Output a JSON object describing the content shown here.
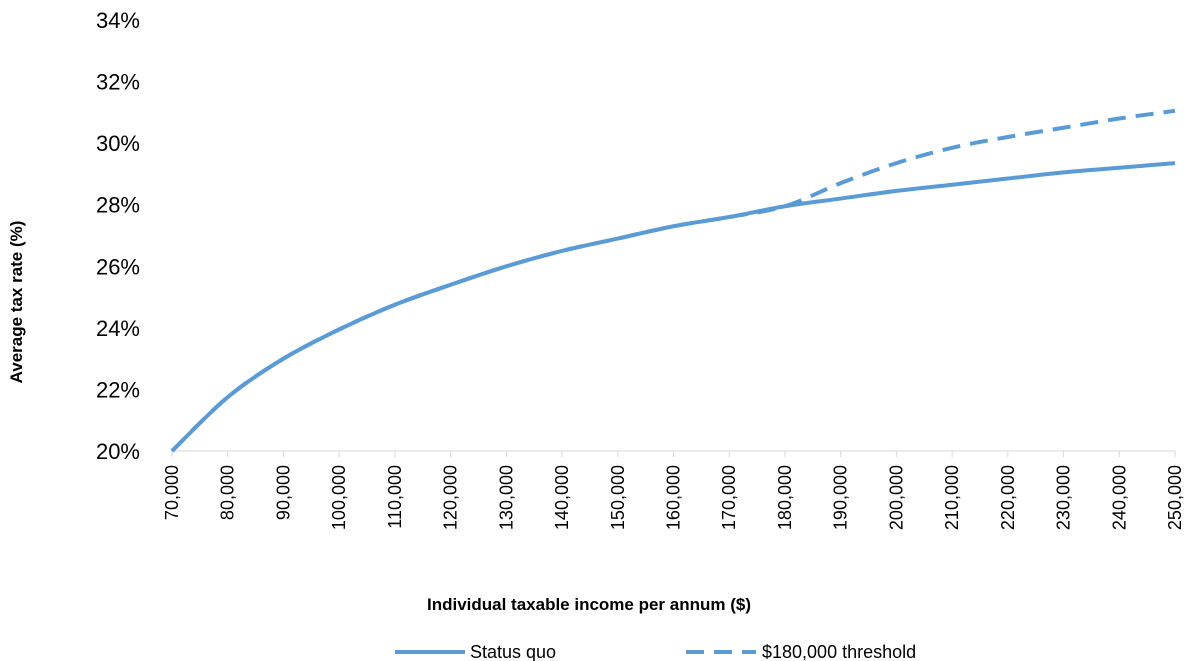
{
  "chart_data": {
    "type": "line",
    "title": "",
    "xlabel": "Individual taxable income per annum ($)",
    "ylabel": "Average tax rate (%)",
    "x_ticks": [
      "70,000",
      "80,000",
      "90,000",
      "100,000",
      "110,000",
      "120,000",
      "130,000",
      "140,000",
      "150,000",
      "160,000",
      "170,000",
      "180,000",
      "190,000",
      "200,000",
      "210,000",
      "220,000",
      "230,000",
      "240,000",
      "250,000"
    ],
    "y_ticks": [
      "20%",
      "22%",
      "24%",
      "26%",
      "28%",
      "30%",
      "32%",
      "34%"
    ],
    "xlim": [
      70000,
      250000
    ],
    "ylim": [
      20,
      34
    ],
    "grid": false,
    "legend_position": "bottom",
    "x": [
      70000,
      80000,
      90000,
      100000,
      110000,
      120000,
      130000,
      140000,
      150000,
      160000,
      170000,
      180000,
      190000,
      200000,
      210000,
      220000,
      230000,
      240000,
      250000
    ],
    "series": [
      {
        "name": "Status quo",
        "style": "solid",
        "color": "#5b9bd5",
        "values": [
          20.0,
          21.75,
          23.0,
          23.95,
          24.75,
          25.4,
          26.0,
          26.5,
          26.9,
          27.3,
          27.6,
          27.95,
          28.2,
          28.45,
          28.65,
          28.85,
          29.05,
          29.2,
          29.35
        ]
      },
      {
        "name": "$180,000 threshold",
        "style": "dashed",
        "color": "#5b9bd5",
        "values": [
          20.0,
          21.75,
          23.0,
          23.95,
          24.75,
          25.4,
          26.0,
          26.5,
          26.9,
          27.3,
          27.6,
          27.95,
          28.7,
          29.35,
          29.85,
          30.2,
          30.5,
          30.8,
          31.05
        ]
      }
    ]
  }
}
